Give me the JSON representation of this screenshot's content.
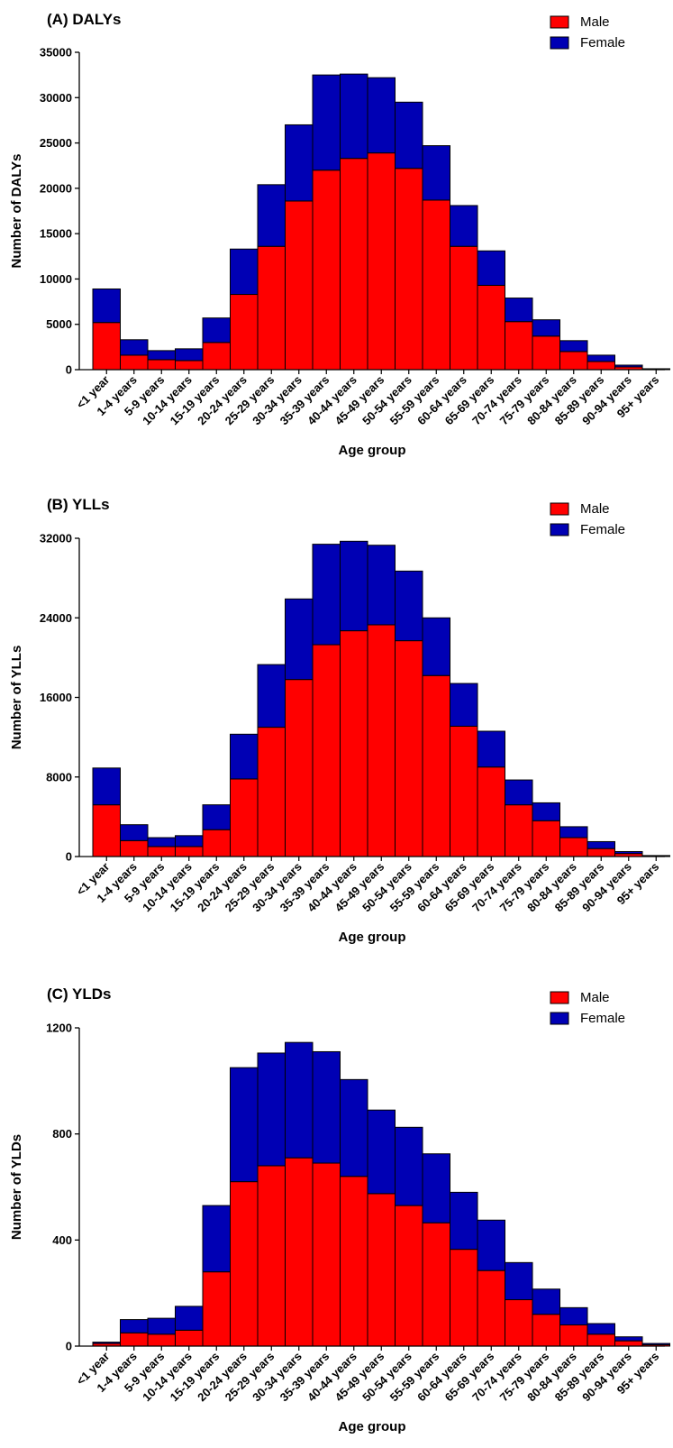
{
  "colors": {
    "male": "#ff0000",
    "female": "#0000b4",
    "stroke": "#000000"
  },
  "chart_data": [
    {
      "type": "bar",
      "stacked": true,
      "title": "(A) DALYs",
      "xlabel": "Age group",
      "ylabel": "Number of DALYs",
      "ylim": [
        0,
        35000
      ],
      "yticks": [
        "0",
        "5000",
        "10000",
        "15000",
        "20000",
        "25000",
        "30000",
        "35000"
      ],
      "ytick_values": [
        0,
        5000,
        10000,
        15000,
        20000,
        25000,
        30000,
        35000
      ],
      "legend_position": "top-right",
      "categories": [
        "<1 year",
        "1-4 years",
        "5-9 years",
        "10-14 years",
        "15-19 years",
        "20-24 years",
        "25-29 years",
        "30-34 years",
        "35-39 years",
        "40-44 years",
        "45-49 years",
        "50-54 years",
        "55-59 years",
        "60-64 years",
        "65-69 years",
        "70-74 years",
        "75-79 years",
        "80-84 years",
        "85-89 years",
        "90-94 years",
        "95+ years"
      ],
      "series": [
        {
          "name": "Male",
          "values": [
            5200,
            1600,
            1100,
            1000,
            3000,
            8300,
            13600,
            18600,
            22000,
            23300,
            23900,
            22200,
            18700,
            13600,
            9300,
            5300,
            3700,
            2000,
            900,
            300,
            50
          ]
        },
        {
          "name": "Female",
          "values": [
            3700,
            1700,
            1000,
            1300,
            2700,
            5000,
            6800,
            8400,
            10500,
            9300,
            8300,
            7300,
            6000,
            4500,
            3800,
            2600,
            1800,
            1200,
            700,
            200,
            50
          ]
        }
      ]
    },
    {
      "type": "bar",
      "stacked": true,
      "title": "(B) YLLs",
      "xlabel": "Age group",
      "ylabel": "Number of YLLs",
      "ylim": [
        0,
        32000
      ],
      "yticks": [
        "0",
        "8000",
        "16000",
        "24000",
        "32000"
      ],
      "ytick_values": [
        0,
        8000,
        16000,
        24000,
        32000
      ],
      "legend_position": "top-right",
      "categories": [
        "<1 year",
        "1-4 years",
        "5-9 years",
        "10-14 years",
        "15-19 years",
        "20-24 years",
        "25-29 years",
        "30-34 years",
        "35-39 years",
        "40-44 years",
        "45-49 years",
        "50-54 years",
        "55-59 years",
        "60-64 years",
        "65-69 years",
        "70-74 years",
        "75-79 years",
        "80-84 years",
        "85-89 years",
        "90-94 years",
        "95+ years"
      ],
      "series": [
        {
          "name": "Male",
          "values": [
            5200,
            1600,
            1000,
            1000,
            2700,
            7800,
            13000,
            17800,
            21300,
            22700,
            23300,
            21700,
            18200,
            13100,
            9000,
            5200,
            3600,
            1900,
            800,
            300,
            50
          ]
        },
        {
          "name": "Female",
          "values": [
            3700,
            1600,
            900,
            1100,
            2500,
            4500,
            6300,
            8100,
            10100,
            9000,
            8000,
            7000,
            5800,
            4300,
            3600,
            2500,
            1800,
            1100,
            700,
            200,
            50
          ]
        }
      ]
    },
    {
      "type": "bar",
      "stacked": true,
      "title": "(C) YLDs",
      "xlabel": "Age group",
      "ylabel": "Number of YLDs",
      "ylim": [
        0,
        1200
      ],
      "yticks": [
        "0",
        "400",
        "800",
        "1200"
      ],
      "ytick_values": [
        0,
        400,
        800,
        1200
      ],
      "legend_position": "top-right",
      "categories": [
        "<1 year",
        "1-4 years",
        "5-9 years",
        "10-14 years",
        "15-19 years",
        "20-24 years",
        "25-29 years",
        "30-34 years",
        "35-39 years",
        "40-44 years",
        "45-49 years",
        "50-54 years",
        "55-59 years",
        "60-64 years",
        "65-69 years",
        "70-74 years",
        "75-79 years",
        "80-84 years",
        "85-89 years",
        "90-94 years",
        "95+ years"
      ],
      "series": [
        {
          "name": "Male",
          "values": [
            10,
            50,
            45,
            60,
            280,
            620,
            680,
            710,
            690,
            640,
            575,
            530,
            465,
            365,
            285,
            175,
            120,
            80,
            45,
            20,
            5
          ]
        },
        {
          "name": "Female",
          "values": [
            5,
            50,
            60,
            90,
            250,
            430,
            425,
            435,
            420,
            365,
            315,
            295,
            260,
            215,
            190,
            140,
            95,
            65,
            40,
            15,
            5
          ]
        }
      ]
    }
  ]
}
